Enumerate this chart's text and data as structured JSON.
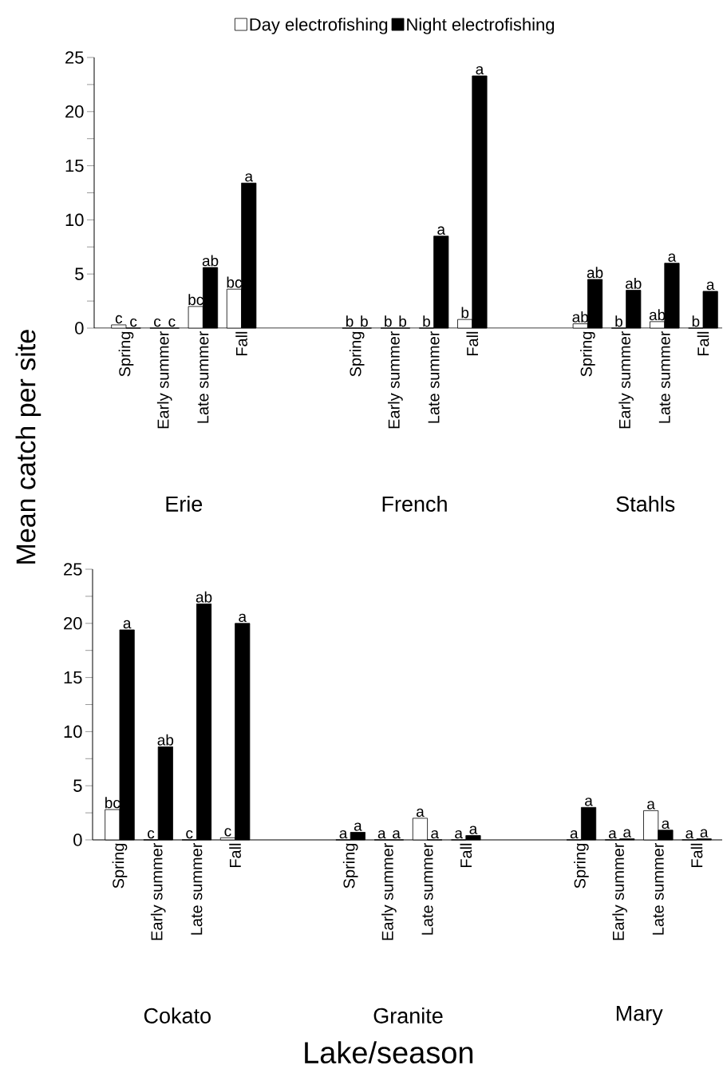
{
  "chart_data": [
    {
      "type": "bar",
      "ylabel": "Mean catch per site",
      "legend": "top",
      "categories": [
        "Spring",
        "Early summer",
        "Late summer",
        "Fall",
        null,
        null,
        "Spring",
        "Early summer",
        "Late summer",
        "Fall",
        null,
        null,
        "Spring",
        "Early summer",
        "Late summer",
        "Fall"
      ],
      "series": [
        {
          "name": "Day electrofishing",
          "color": "#ffffff",
          "values": [
            0.3,
            0,
            2.0,
            3.6,
            null,
            null,
            0,
            0,
            0,
            0.8,
            null,
            null,
            0.4,
            0,
            0.6,
            0
          ],
          "value_labels": [
            "c",
            "c",
            "bc",
            "bc",
            null,
            null,
            "b",
            "b",
            "b",
            "b",
            null,
            null,
            "ab",
            "b",
            "ab",
            "b"
          ]
        },
        {
          "name": "Night electrofishing",
          "color": "#000000",
          "values": [
            0,
            0,
            5.6,
            13.4,
            null,
            null,
            0,
            0,
            8.5,
            23.3,
            null,
            null,
            4.5,
            3.5,
            6.0,
            3.4
          ],
          "value_labels": [
            "c",
            "c",
            "ab",
            "a",
            null,
            null,
            "b",
            "b",
            "a",
            "a",
            null,
            null,
            "ab",
            "ab",
            "a",
            "a"
          ]
        }
      ],
      "ylim": [
        0,
        25
      ],
      "yticks": [
        0,
        {
          "value": 2.5,
          "label": null
        },
        5,
        {
          "value": 7.5,
          "label": null
        },
        10,
        {
          "value": 12.5,
          "label": null
        },
        15,
        {
          "value": 17.5,
          "label": null
        },
        20,
        {
          "value": 22.5,
          "label": null
        },
        25
      ],
      "annotations": [
        "Erie",
        "French",
        "Stahls"
      ]
    },
    {
      "type": "bar",
      "xlabel": "Lake/season",
      "categories": [
        "Spring",
        "Early summer",
        "Late summer",
        "Fall",
        null,
        null,
        "Spring",
        "Early summer",
        "Late summer",
        "Fall",
        null,
        null,
        "Spring",
        "Early summer",
        "Late summer",
        "Fall"
      ],
      "series": [
        {
          "color": "#ffffff",
          "values": [
            2.8,
            0,
            0,
            0.2,
            null,
            null,
            0,
            0,
            2.0,
            0,
            null,
            null,
            0,
            0,
            2.7,
            0
          ],
          "value_labels": [
            "bc",
            "c",
            "c",
            "c",
            null,
            null,
            "a",
            "a",
            "a",
            "a",
            null,
            null,
            "a",
            "a",
            "a",
            "a"
          ]
        },
        {
          "color": "#000000",
          "values": [
            19.4,
            8.6,
            21.8,
            20.0,
            null,
            null,
            0.7,
            0,
            0,
            0.4,
            null,
            null,
            3.0,
            0.1,
            0.9,
            0.1
          ],
          "value_labels": [
            "a",
            "ab",
            "ab",
            "a",
            null,
            null,
            "a",
            "a",
            "a",
            "a",
            null,
            null,
            "a",
            "a",
            "a",
            "a"
          ]
        }
      ],
      "ylim": [
        0,
        25
      ],
      "yticks": [
        0,
        {
          "value": 2.5,
          "label": null
        },
        5,
        {
          "value": 7.5,
          "label": null
        },
        10,
        {
          "value": 12.5,
          "label": null
        },
        15,
        {
          "value": 17.5,
          "label": null
        },
        20,
        {
          "value": 22.5,
          "label": null
        },
        25
      ],
      "annotations": [
        "Cokato",
        "Granite",
        "Mary"
      ]
    }
  ]
}
